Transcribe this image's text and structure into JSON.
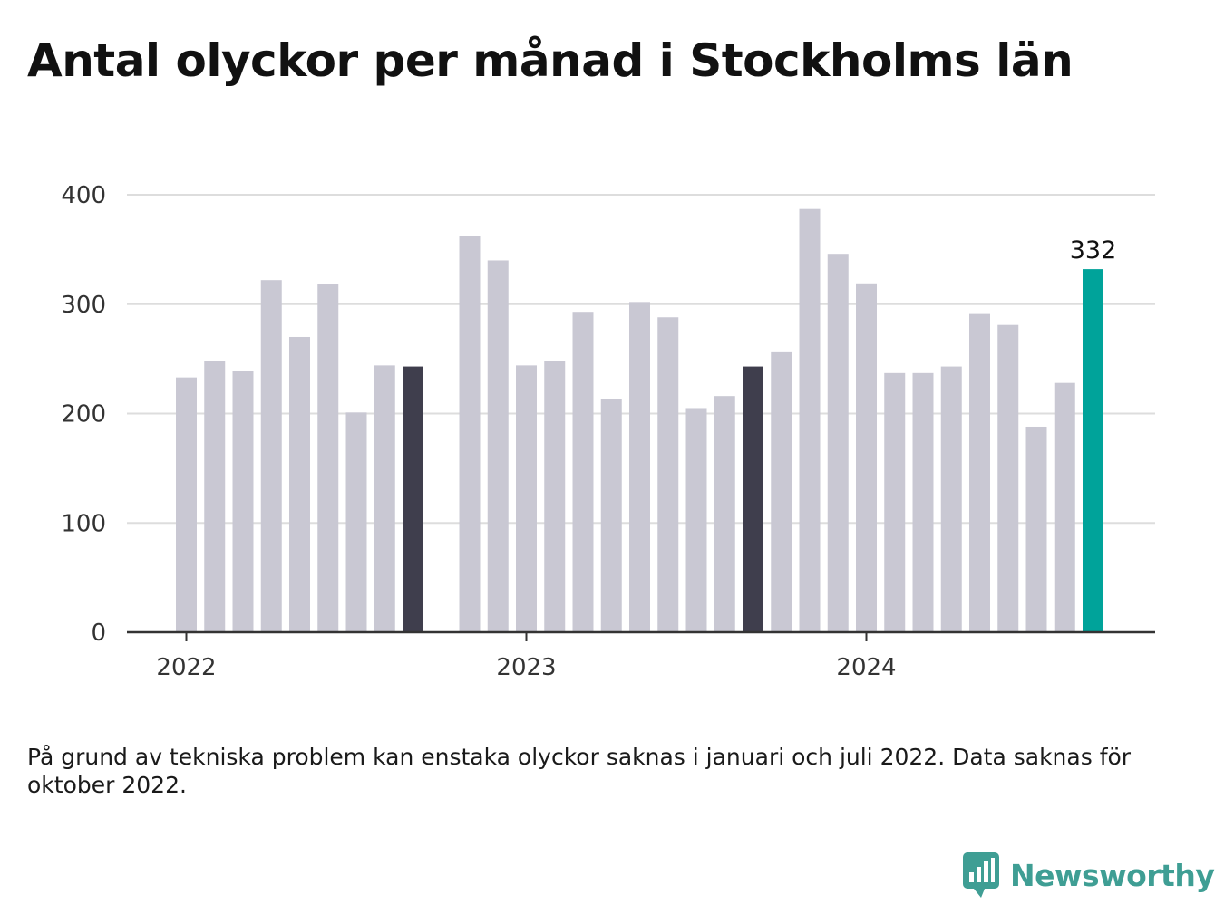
{
  "title": "Antal olyckor per månad i Stockholms län",
  "footnote": "På grund av tekniska problem kan enstaka olyckor saknas i januari och juli 2022. Data saknas för oktober 2022.",
  "brand": {
    "name": "Newsworthy",
    "icon": "newsworthy-logo-icon",
    "color": "#3f9e94"
  },
  "colors": {
    "bar": "#c9c8d3",
    "bar_highlight": "#3f3e4d",
    "bar_latest": "#00a39a",
    "grid": "#dddddd",
    "axis": "#333333",
    "tick_text": "#333333"
  },
  "chart_data": {
    "type": "bar",
    "x": [
      "2022-01",
      "2022-02",
      "2022-03",
      "2022-04",
      "2022-05",
      "2022-06",
      "2022-07",
      "2022-08",
      "2022-09",
      "2022-10",
      "2022-11",
      "2022-12",
      "2023-01",
      "2023-02",
      "2023-03",
      "2023-04",
      "2023-05",
      "2023-06",
      "2023-07",
      "2023-08",
      "2023-09",
      "2023-10",
      "2023-11",
      "2023-12",
      "2024-01",
      "2024-02",
      "2024-03",
      "2024-04",
      "2024-05",
      "2024-06",
      "2024-07",
      "2024-08",
      "2024-09",
      "2024-10"
    ],
    "values": [
      233,
      248,
      239,
      322,
      270,
      318,
      201,
      244,
      243,
      null,
      362,
      340,
      244,
      248,
      293,
      213,
      302,
      288,
      205,
      216,
      243,
      256,
      387,
      346,
      319,
      237,
      237,
      243,
      291,
      281,
      188,
      228,
      332,
      null
    ],
    "highlight": [
      "2022-09",
      "2023-09"
    ],
    "latest": "2024-09",
    "value_labels": [
      {
        "x": "2024-09",
        "text": "332"
      }
    ],
    "x_ticks": [
      {
        "x": "2022-01",
        "label": "2022"
      },
      {
        "x": "2023-01",
        "label": "2023"
      },
      {
        "x": "2024-01",
        "label": "2024"
      }
    ],
    "y_ticks": [
      0,
      100,
      200,
      300,
      400
    ],
    "ylim": [
      0,
      400
    ],
    "xlabel": "",
    "ylabel": "",
    "grid": true,
    "legend": "none"
  }
}
